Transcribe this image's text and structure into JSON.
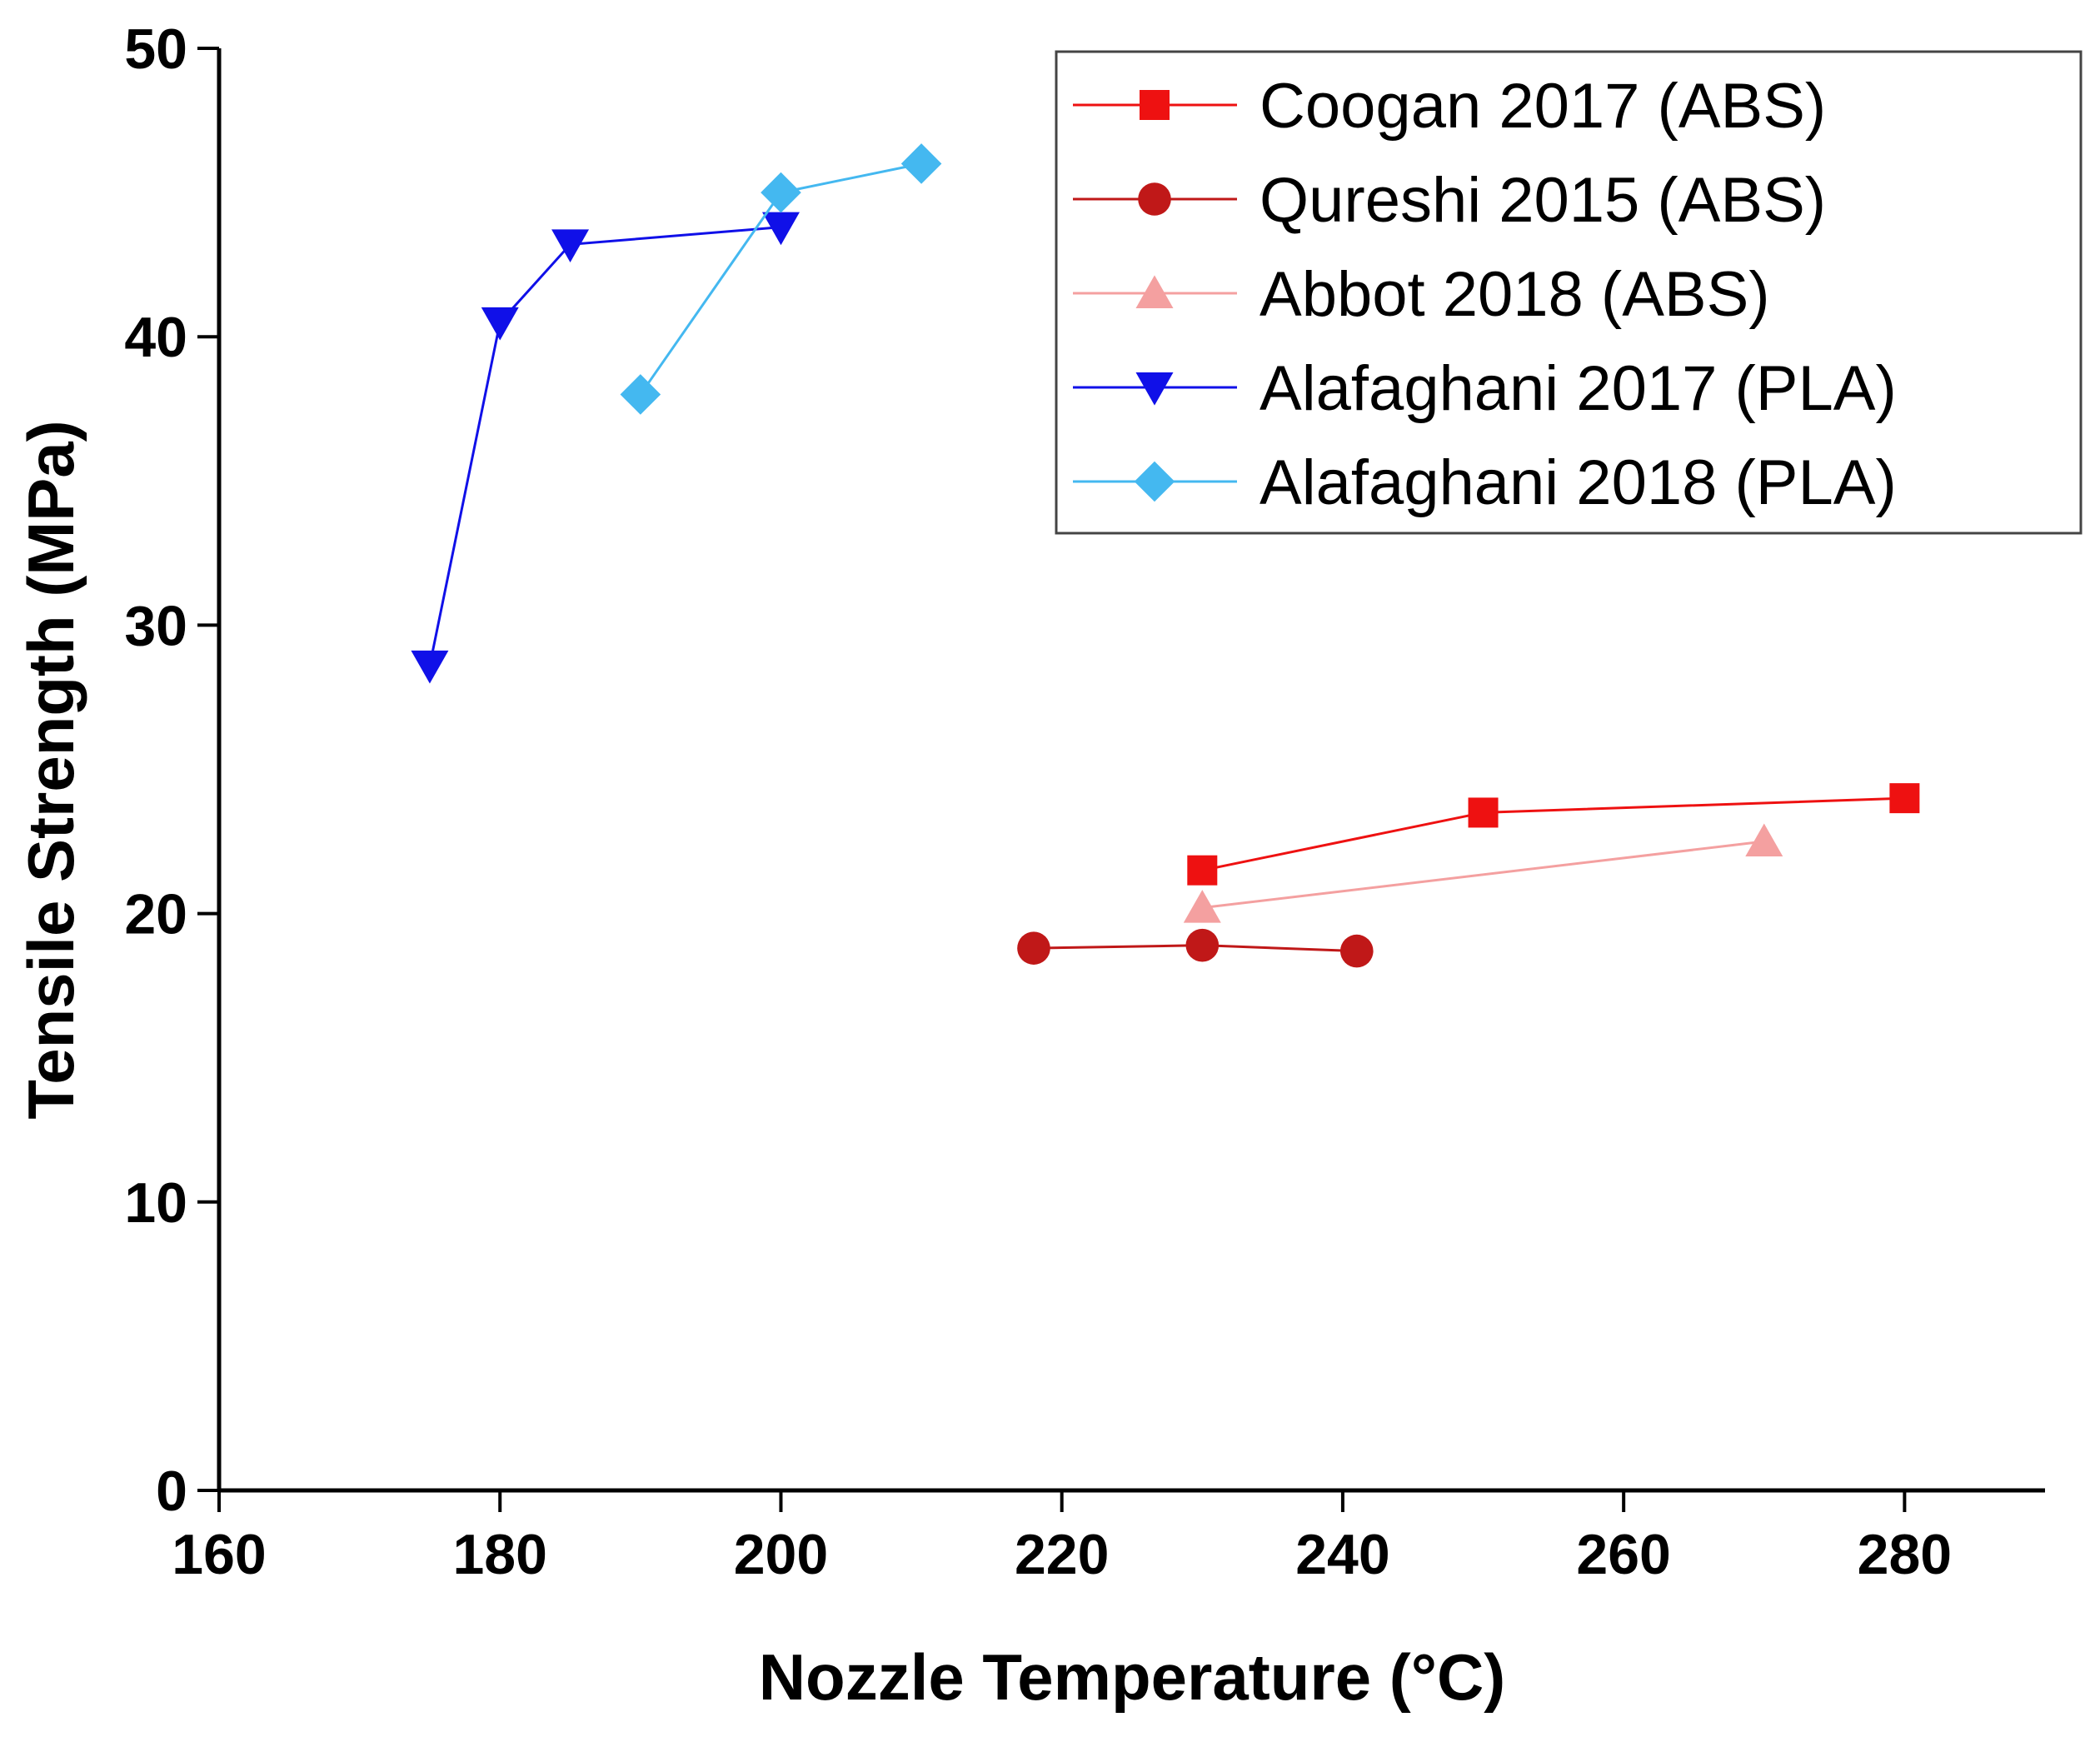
{
  "chart_data": {
    "type": "line",
    "title": "",
    "xlabel": "Nozzle Temperature (°C)",
    "ylabel": "Tensile Strength (MPa)",
    "xlim": [
      160,
      290
    ],
    "ylim": [
      0,
      50
    ],
    "xticks": [
      160,
      180,
      200,
      220,
      240,
      260,
      280
    ],
    "yticks": [
      0,
      10,
      20,
      30,
      40,
      50
    ],
    "grid": false,
    "legend_position": "top-right",
    "series": [
      {
        "name": "Coogan 2017 (ABS)",
        "marker": "square",
        "color": "#ee1111",
        "points": [
          [
            230,
            21.5
          ],
          [
            250,
            23.5
          ],
          [
            280,
            24.0
          ]
        ]
      },
      {
        "name": "Qureshi 2015 (ABS)",
        "marker": "circle",
        "color": "#c01818",
        "points": [
          [
            218,
            18.8
          ],
          [
            230,
            18.9
          ],
          [
            241,
            18.7
          ]
        ]
      },
      {
        "name": "Abbot 2018 (ABS)",
        "marker": "triangle-up",
        "color": "#f4a0a0",
        "points": [
          [
            230,
            20.2
          ],
          [
            270,
            22.5
          ]
        ]
      },
      {
        "name": "Alafaghani  2017 (PLA)",
        "marker": "triangle-down",
        "color": "#1010e8",
        "points": [
          [
            175,
            28.6
          ],
          [
            180,
            40.5
          ],
          [
            185,
            43.2
          ],
          [
            200,
            43.8
          ]
        ]
      },
      {
        "name": "Alafaghani 2018 (PLA)",
        "marker": "diamond",
        "color": "#44b8f0",
        "points": [
          [
            190,
            38.0
          ],
          [
            200,
            45.0
          ],
          [
            210,
            46.0
          ]
        ]
      }
    ]
  }
}
